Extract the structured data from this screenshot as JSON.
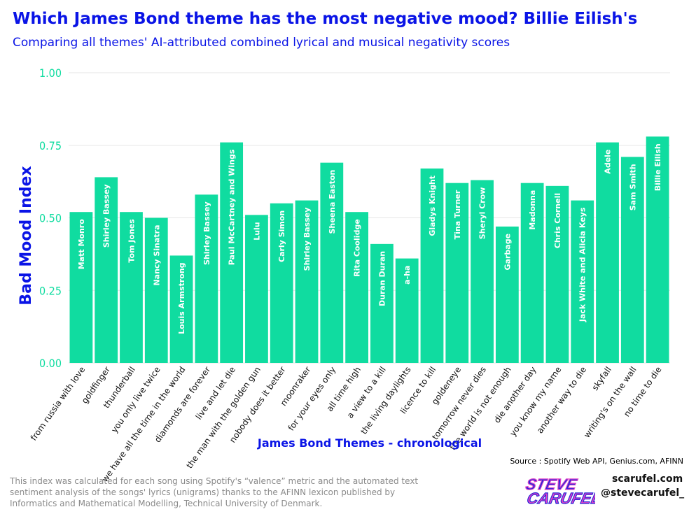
{
  "header": {
    "title": "Which James Bond theme has the most negative mood? Billie Eilish's",
    "subtitle": "Comparing all themes' AI-attributed combined lyrical and musical negativity scores"
  },
  "footer": {
    "source": "Source : Spotify Web API, Genius.com, AFINN",
    "note": "This index was calculated for each song using Spotify's “valence” metric and the automated text sentiment analysis of the songs' lyrics (unigrams) thanks to the AFINN lexicon published by Informatics and Mathematical Modelling, Technical University of Denmark.",
    "site": "scarufel.com",
    "handle": "@stevecarufel_",
    "logo_line1": "STEVE",
    "logo_line2": "CARUFEL"
  },
  "colors": {
    "bar": "#10dca0",
    "accent": "#0a14e6",
    "tick": "#10dca0",
    "logo_fill": "#2a2ad8",
    "logo_stroke": "#e040c8"
  },
  "chart_data": {
    "type": "bar",
    "title": "",
    "xlabel": "James Bond Themes - chronological",
    "ylabel": "Bad Mood Index",
    "ylim": [
      0,
      1
    ],
    "yticks": [
      "0.00",
      "0.25",
      "0.50",
      "0.75",
      "1.00"
    ],
    "grid": true,
    "categories": [
      "from russia with love",
      "goldfinger",
      "thunderball",
      "you only live twice",
      "we have all the time in the world",
      "diamonds are forever",
      "live and let die",
      "the man with the golden gun",
      "nobody does it better",
      "moonraker",
      "for your eyes only",
      "all time high",
      "a view to a kill",
      "the living daylights",
      "licence to kill",
      "goldeneye",
      "tomorrow never dies",
      "the world is not enough",
      "die another day",
      "you know my name",
      "another way to die",
      "skyfall",
      "writing's on the wall",
      "no time to die"
    ],
    "artists": [
      "Matt Monro",
      "Shirley Bassey",
      "Tom Jones",
      "Nancy Sinatra",
      "Louis Armstrong",
      "Shirley Bassey",
      "Paul McCartney and Wings",
      "Lulu",
      "Carly Simon",
      "Shirley Bassey",
      "Sheena Easton",
      "Rita Coolidge",
      "Duran Duran",
      "a-ha",
      "Gladys Knight",
      "Tina Turner",
      "Sheryl Crow",
      "Garbage",
      "Madonna",
      "Chris Cornell",
      "Jack White and Alicia Keys",
      "Adele",
      "Sam Smith",
      "Billie Eilish"
    ],
    "values": [
      0.52,
      0.64,
      0.52,
      0.5,
      0.37,
      0.58,
      0.76,
      0.51,
      0.55,
      0.56,
      0.69,
      0.52,
      0.41,
      0.36,
      0.67,
      0.62,
      0.63,
      0.47,
      0.62,
      0.61,
      0.56,
      0.76,
      0.71,
      0.78
    ]
  }
}
